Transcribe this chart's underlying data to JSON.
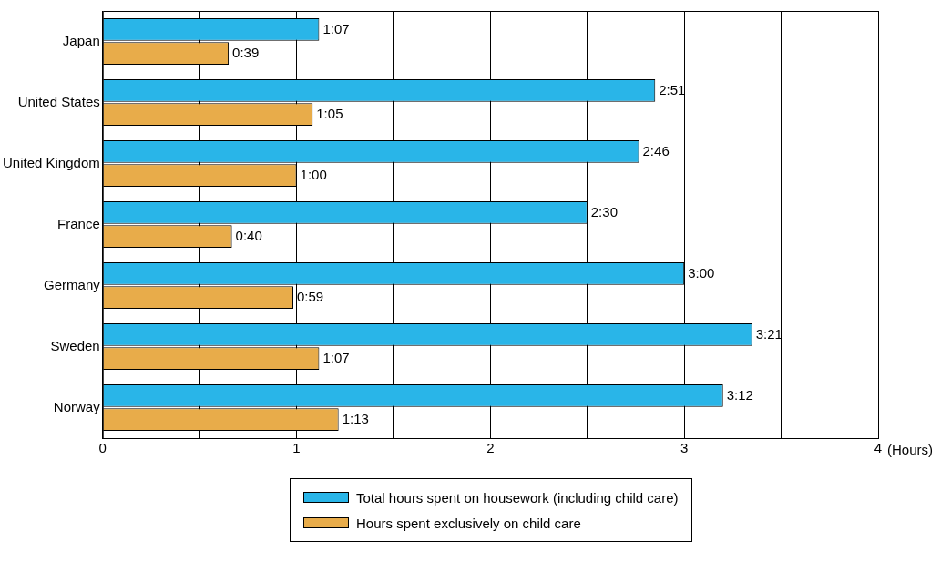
{
  "chart_data": {
    "type": "bar",
    "orientation": "horizontal",
    "xlabel": "(Hours)",
    "categories": [
      "Japan",
      "United States",
      "United Kingdom",
      "France",
      "Germany",
      "Sweden",
      "Norway"
    ],
    "series": [
      {
        "name": "Total hours spent on housework (including child care)",
        "color": "#29b5e8",
        "values": [
          1.1167,
          2.85,
          2.7667,
          2.5,
          3,
          3.35,
          3.2
        ],
        "value_labels": [
          "1:07",
          "2:51",
          "2:46",
          "2:30",
          "3:00",
          "3:21",
          "3:12"
        ]
      },
      {
        "name": "Hours spent exclusively on child care",
        "color": "#e8ac4a",
        "values": [
          0.65,
          1.0833,
          1,
          0.6667,
          0.9833,
          1.1167,
          1.2167
        ],
        "value_labels": [
          "0:39",
          "1:05",
          "1:00",
          "0:40",
          "0:59",
          "1:07",
          "1:13"
        ]
      }
    ],
    "xlim": [
      0,
      4
    ],
    "xticks": [
      0,
      {
        "value": 0.5,
        "label": null
      },
      1,
      {
        "value": 1.5,
        "label": null
      },
      2,
      {
        "value": 2.5,
        "label": null
      },
      3,
      {
        "value": 3.5,
        "label": null
      },
      4
    ],
    "grid": "x",
    "legend": "bottom"
  }
}
